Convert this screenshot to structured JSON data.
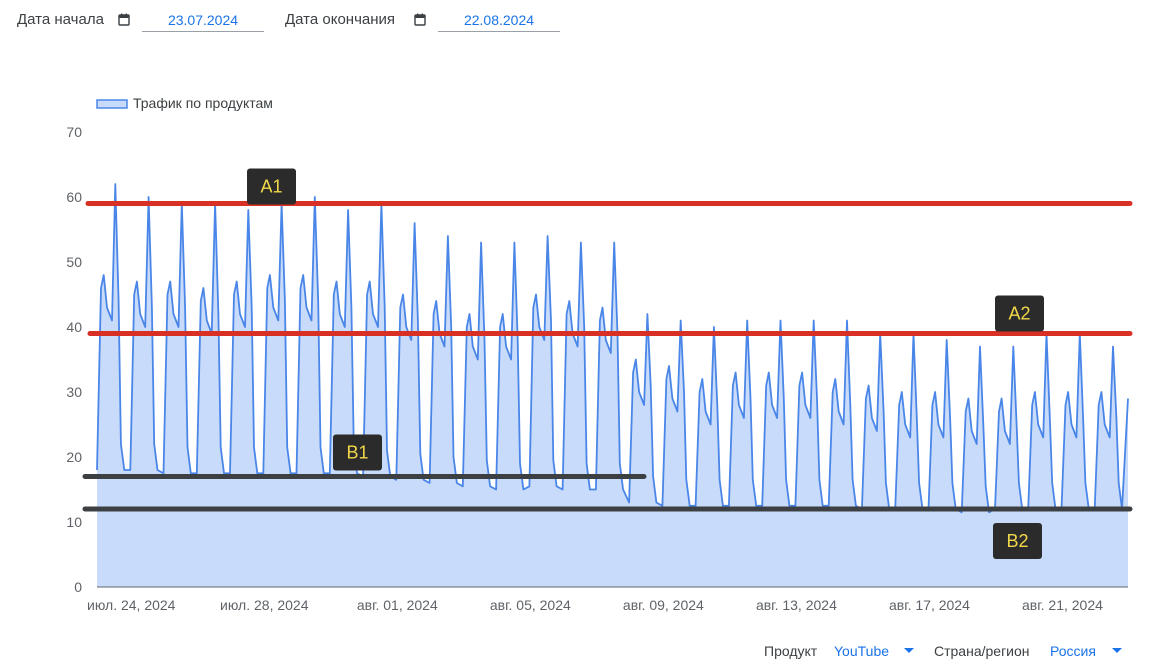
{
  "filters": {
    "start_label": "Дата начала",
    "start_value": "23.07.2024",
    "end_label": "Дата окончания",
    "end_value": "22.08.2024",
    "product_label": "Продукт",
    "product_value": "YouTube",
    "region_label": "Страна/регион",
    "region_value": "Россия"
  },
  "colors": {
    "series_line": "#4a86e8",
    "series_fill": "#c9dbfa",
    "level_red": "#d93025",
    "level_dark": "#3c4043",
    "callout_bg": "#2b2b2b",
    "callout_text": "#f1d84a",
    "link": "#1a73e8"
  },
  "icons": [
    "calendar-icon",
    "dropdown-caret-icon"
  ],
  "chart_data": {
    "type": "area",
    "legend": [
      "Трафик по продуктам"
    ],
    "legend_position": "top-left",
    "grid": false,
    "ylim": [
      0,
      70
    ],
    "y_ticks": [
      "0",
      "10",
      "20",
      "30",
      "40",
      "50",
      "60",
      "70"
    ],
    "x_tick_labels": [
      "июл. 24, 2024",
      "июл. 28, 2024",
      "авг. 01, 2024",
      "авг. 05, 2024",
      "авг. 09, 2024",
      "авг. 13, 2024",
      "авг. 17, 2024",
      "авг. 21, 2024"
    ],
    "x_dates": [
      "2024-07-23",
      "2024-07-24",
      "2024-07-25",
      "2024-07-26",
      "2024-07-27",
      "2024-07-28",
      "2024-07-29",
      "2024-07-30",
      "2024-07-31",
      "2024-08-01",
      "2024-08-02",
      "2024-08-03",
      "2024-08-04",
      "2024-08-05",
      "2024-08-06",
      "2024-08-07",
      "2024-08-08",
      "2024-08-09",
      "2024-08-10",
      "2024-08-11",
      "2024-08-12",
      "2024-08-13",
      "2024-08-14",
      "2024-08-15",
      "2024-08-16",
      "2024-08-17",
      "2024-08-18",
      "2024-08-19",
      "2024-08-20",
      "2024-08-21",
      "2024-08-22"
    ],
    "series": [
      {
        "name": "Трафик по продуктам",
        "daily_peaks": [
          62,
          60,
          59,
          59,
          58,
          59,
          60,
          58,
          59,
          56,
          54,
          53,
          53,
          54,
          53,
          53,
          42,
          41,
          40,
          41,
          41,
          41,
          41,
          39,
          39,
          38,
          37,
          37,
          39,
          39,
          37
        ],
        "daily_lows": [
          18,
          18,
          17.5,
          17.5,
          17.5,
          17.5,
          17.5,
          17.5,
          17,
          16.5,
          16,
          15.5,
          15,
          15.5,
          15,
          15,
          13,
          12.5,
          12.5,
          12.5,
          12.5,
          12.5,
          12.5,
          12,
          12,
          12,
          11.5,
          12,
          12,
          12,
          12
        ],
        "daily_mid": [
          47,
          46,
          46,
          45,
          46,
          47,
          47,
          46,
          46,
          44,
          43,
          41,
          41,
          44,
          43,
          42,
          34,
          33,
          31,
          32,
          32,
          32,
          31,
          30,
          29,
          29,
          28,
          28,
          29,
          29,
          29
        ]
      }
    ],
    "annotations": [
      {
        "label": "A1",
        "type": "hline",
        "y": 59,
        "x_from": "2024-07-23",
        "x_to": "2024-08-22",
        "color": "red"
      },
      {
        "label": "A2",
        "type": "hline",
        "y": 39,
        "x_from": "2024-07-23",
        "x_to": "2024-08-22",
        "color": "red"
      },
      {
        "label": "B1",
        "type": "hline",
        "y": 17,
        "x_from": "2024-07-23",
        "x_to": "2024-08-08",
        "color": "dark"
      },
      {
        "label": "B2",
        "type": "hline",
        "y": 12,
        "x_from": "2024-07-23",
        "x_to": "2024-08-22",
        "color": "dark"
      }
    ]
  }
}
